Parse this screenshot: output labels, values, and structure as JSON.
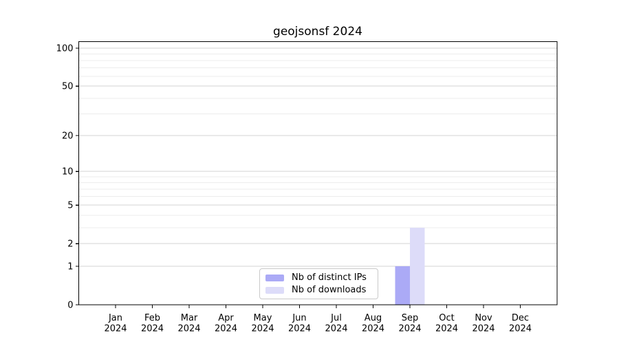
{
  "chart_data": {
    "type": "bar",
    "title": "geojsonsf 2024",
    "categories": [
      "Jan",
      "Feb",
      "Mar",
      "Apr",
      "May",
      "Jun",
      "Jul",
      "Aug",
      "Sep",
      "Oct",
      "Nov",
      "Dec"
    ],
    "category_year": "2024",
    "series": [
      {
        "name": "Nb of distinct IPs",
        "color": "#abaaf6",
        "values": [
          0,
          0,
          0,
          0,
          0,
          0,
          0,
          0,
          1,
          0,
          0,
          0
        ]
      },
      {
        "name": "Nb of downloads",
        "color": "#dddcf9",
        "values": [
          0,
          0,
          0,
          0,
          0,
          0,
          0,
          0,
          3,
          0,
          0,
          0
        ]
      }
    ],
    "y_axis": {
      "scale": "log1p",
      "major_ticks": [
        0,
        1,
        2,
        5,
        10,
        20,
        50,
        100
      ],
      "minor_gridlines": [
        3,
        4,
        6,
        7,
        8,
        9,
        30,
        40,
        60,
        70,
        80,
        90
      ],
      "ylim": [
        0,
        113
      ]
    },
    "x_axis": {
      "tick_count": 12
    },
    "grid": true,
    "legend_position": "lower-center-inside"
  },
  "colors": {
    "bar_distinct_ips": "#abaaf6",
    "bar_downloads": "#dddcf9",
    "major_grid": "#d3d3d3",
    "minor_grid": "#ececec",
    "axis": "#000000",
    "legend_border": "#c9c9c9",
    "text": "#000000"
  }
}
